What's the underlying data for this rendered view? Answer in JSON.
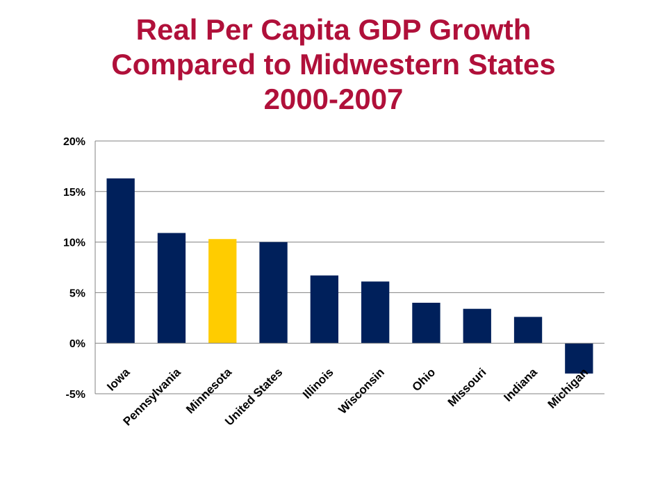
{
  "title_lines": [
    "Real Per Capita GDP Growth",
    "Compared to Midwestern States",
    "2000-2007"
  ],
  "colors": {
    "title": "#b0103a",
    "bar": "#00205b",
    "highlight": "#ffcc00",
    "grid": "#808080"
  },
  "chart_data": {
    "type": "bar",
    "title": "Real Per Capita GDP Growth Compared to Midwestern States 2000-2007",
    "categories": [
      "Iowa",
      "Pennsylvania",
      "Minnesota",
      "United States",
      "Illinois",
      "Wisconsin",
      "Ohio",
      "Missouri",
      "Indiana",
      "Michigan"
    ],
    "values": [
      16.3,
      10.9,
      10.3,
      10.0,
      6.7,
      6.1,
      4.0,
      3.4,
      2.6,
      -3.0
    ],
    "highlight_category": "Minnesota",
    "ylim": [
      -5,
      20
    ],
    "yticks": [
      20,
      15,
      10,
      5,
      0,
      -5
    ],
    "ytick_labels": [
      "20%",
      "15%",
      "10%",
      "5%",
      "0%",
      "-5%"
    ],
    "grid": true,
    "legend": "none",
    "xlabel": "",
    "ylabel": ""
  }
}
